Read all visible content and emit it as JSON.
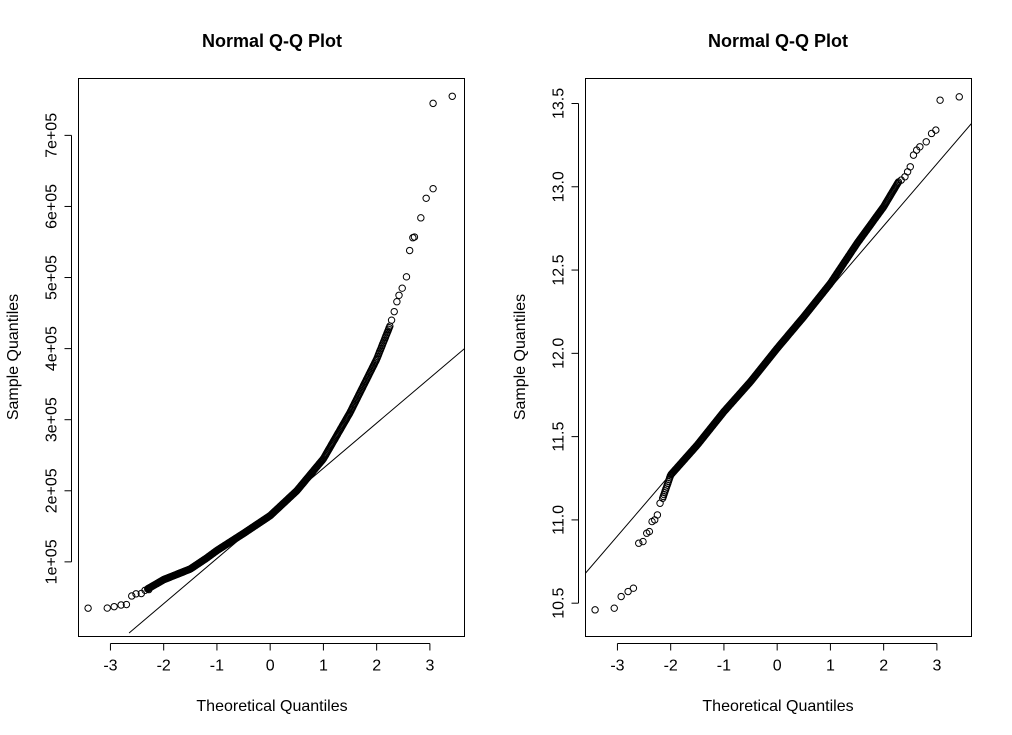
{
  "chart_data": [
    {
      "type": "scatter",
      "title": "Normal Q-Q Plot",
      "xlabel": "Theoretical Quantiles",
      "ylabel": "Sample Quantiles",
      "xlim": [
        -3.6,
        3.65
      ],
      "ylim": [
        -5000,
        780000
      ],
      "xticks": [
        -3,
        -2,
        -1,
        0,
        1,
        2,
        3
      ],
      "xtick_labels": [
        "-3",
        "-2",
        "-1",
        "0",
        "1",
        "2",
        "3"
      ],
      "yticks": [
        100000,
        200000,
        300000,
        400000,
        500000,
        600000,
        700000
      ],
      "ytick_labels": [
        "1e+05",
        "2e+05",
        "3e+05",
        "4e+05",
        "5e+05",
        "6e+05",
        "7e+05"
      ],
      "grid": false,
      "reference_line": [
        [
          -2.65,
          0
        ],
        [
          3.65,
          400000
        ]
      ],
      "outlier_points": [
        [
          -3.42,
          34900
        ],
        [
          -3.06,
          35000
        ],
        [
          -2.93,
          37000
        ],
        [
          -2.8,
          39300
        ],
        [
          -2.7,
          40000
        ],
        [
          -2.6,
          52000
        ],
        [
          -2.52,
          55000
        ],
        [
          -2.42,
          55500
        ],
        [
          -2.35,
          60000
        ],
        [
          -2.28,
          61000
        ],
        [
          2.28,
          440000
        ],
        [
          2.33,
          452000
        ],
        [
          2.38,
          466000
        ],
        [
          2.42,
          475000
        ],
        [
          2.48,
          485000
        ],
        [
          2.56,
          501000
        ],
        [
          2.62,
          538000
        ],
        [
          2.68,
          556000
        ],
        [
          2.71,
          557000
        ],
        [
          2.83,
          584000
        ],
        [
          2.93,
          611500
        ],
        [
          3.06,
          625000
        ],
        [
          3.06,
          745000
        ],
        [
          3.42,
          755000
        ]
      ],
      "curve": {
        "t_range": [
          -2.3,
          2.25
        ],
        "step": 0.012,
        "knots_x": [
          -2.3,
          -2.0,
          -1.5,
          -1.2,
          -1.0,
          -0.5,
          0.0,
          0.5,
          1.0,
          1.5,
          2.0,
          2.25
        ],
        "knots_y": [
          62000,
          75000,
          90000,
          105000,
          116000,
          140000,
          165000,
          200000,
          245000,
          310000,
          385000,
          432000
        ]
      }
    },
    {
      "type": "scatter",
      "title": "Normal Q-Q Plot",
      "xlabel": "Theoretical Quantiles",
      "ylabel": "Sample Quantiles",
      "xlim": [
        -3.6,
        3.65
      ],
      "ylim": [
        10.3,
        13.65
      ],
      "xticks": [
        -3,
        -2,
        -1,
        0,
        1,
        2,
        3
      ],
      "xtick_labels": [
        "-3",
        "-2",
        "-1",
        "0",
        "1",
        "2",
        "3"
      ],
      "yticks": [
        10.5,
        11.0,
        11.5,
        12.0,
        12.5,
        13.0,
        13.5
      ],
      "ytick_labels": [
        "10.5",
        "11.0",
        "11.5",
        "12.0",
        "12.5",
        "13.0",
        "13.5"
      ],
      "grid": false,
      "reference_line": [
        [
          -3.6,
          10.68
        ],
        [
          3.65,
          13.38
        ]
      ],
      "outlier_points": [
        [
          -3.42,
          10.46
        ],
        [
          -3.06,
          10.47
        ],
        [
          -2.93,
          10.54
        ],
        [
          -2.8,
          10.57
        ],
        [
          -2.7,
          10.59
        ],
        [
          -2.6,
          10.86
        ],
        [
          -2.52,
          10.87
        ],
        [
          -2.45,
          10.92
        ],
        [
          -2.4,
          10.93
        ],
        [
          -2.35,
          10.99
        ],
        [
          -2.3,
          11.0
        ],
        [
          -2.25,
          11.03
        ],
        [
          -2.2,
          11.1
        ],
        [
          2.33,
          13.04
        ],
        [
          2.4,
          13.06
        ],
        [
          2.45,
          13.09
        ],
        [
          2.5,
          13.12
        ],
        [
          2.56,
          13.19
        ],
        [
          2.62,
          13.22
        ],
        [
          2.68,
          13.24
        ],
        [
          2.8,
          13.27
        ],
        [
          2.9,
          13.32
        ],
        [
          2.98,
          13.34
        ],
        [
          3.06,
          13.52
        ],
        [
          3.42,
          13.54
        ]
      ],
      "curve": {
        "t_range": [
          -2.15,
          2.28
        ],
        "step": 0.012,
        "knots_x": [
          -2.15,
          -2.0,
          -1.5,
          -1.0,
          -0.5,
          0.0,
          0.5,
          1.0,
          1.5,
          2.0,
          2.28
        ],
        "knots_y": [
          11.13,
          11.27,
          11.45,
          11.65,
          11.83,
          12.03,
          12.22,
          12.42,
          12.66,
          12.88,
          13.03
        ]
      }
    }
  ]
}
